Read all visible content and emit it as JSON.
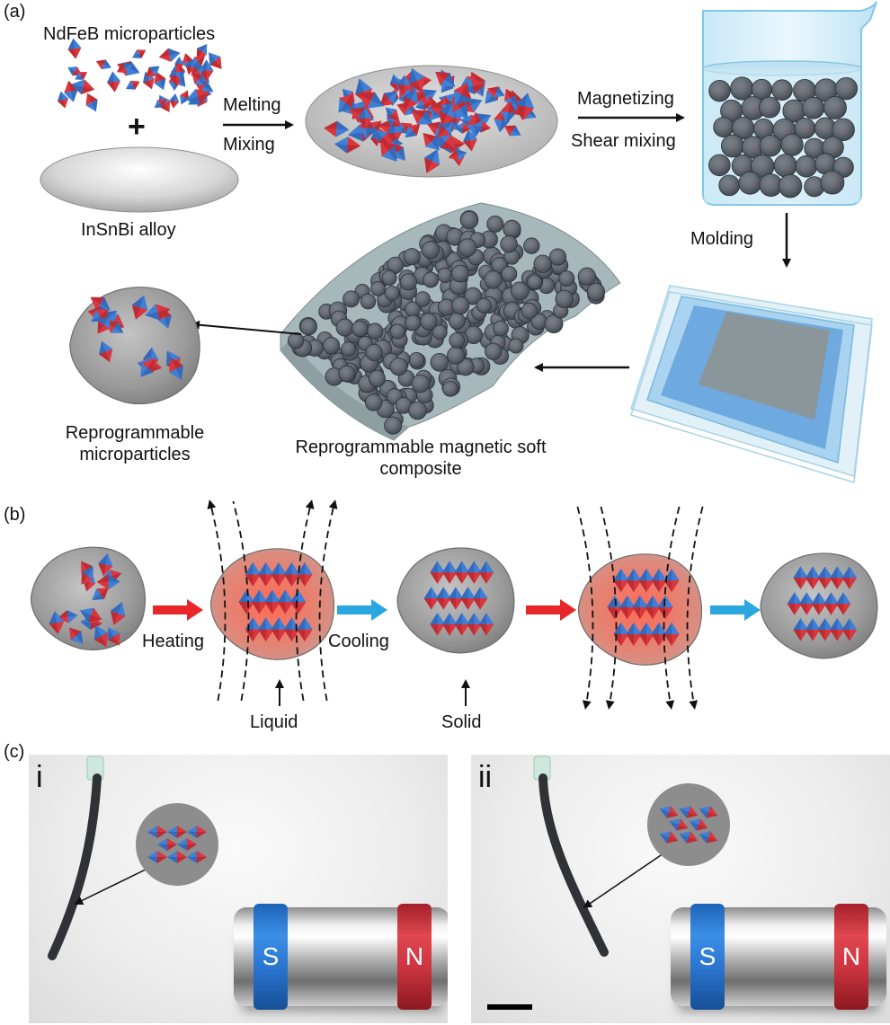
{
  "panel_a": {
    "tag": "(a)",
    "ndfeb": "NdFeB microparticles",
    "alloy": "InSnBi alloy",
    "plus": "+",
    "melting": "Melting",
    "mixing": "Mixing",
    "magnetizing": "Magnetizing",
    "shear": "Shear mixing",
    "molding": "Molding",
    "repro_micro": "Reprogrammable microparticles",
    "repro_comp": "Reprogrammable magnetic soft composite"
  },
  "panel_b": {
    "tag": "(b)",
    "heating": "Heating",
    "cooling": "Cooling",
    "liquid": "Liquid",
    "solid": "Solid"
  },
  "panel_c": {
    "tag": "(c)",
    "i": "i",
    "ii": "ii",
    "s": "S",
    "n": "N"
  },
  "colors": {
    "red": "#e8262a",
    "blue": "#2aa6e0",
    "particle_red": "#d9363d",
    "particle_blue": "#3f7fd6",
    "grey_body": "#9a9a9a"
  }
}
